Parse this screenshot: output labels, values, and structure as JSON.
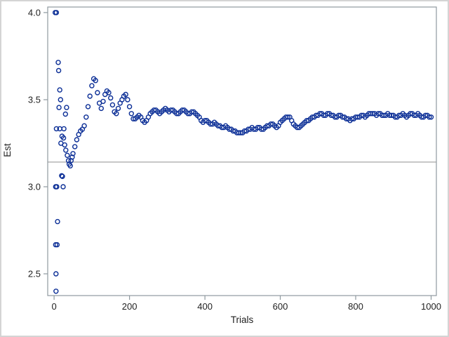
{
  "chart_data": {
    "type": "scatter",
    "title": "",
    "xlabel": "Trials",
    "ylabel": "Est",
    "xticks": [
      0,
      200,
      400,
      600,
      800,
      1000
    ],
    "yticks": [
      2.5,
      3.0,
      3.5,
      4.0
    ],
    "ytick_labels": [
      "2.5",
      "3.0",
      "3.5",
      "4.0"
    ],
    "xlim": [
      -17,
      1014
    ],
    "ylim": [
      2.375,
      4.032
    ],
    "grid": false,
    "legend": "none",
    "reference_line_y": 3.14159,
    "marker": {
      "shape": "open-circle",
      "radius": 3,
      "color": "#0b2e96"
    },
    "colors": {
      "marker": "#0b2e96",
      "reference_line": "#8f8f8f",
      "frame": "#8f999f",
      "tick": "#8f999f",
      "text": "#1f1f1f",
      "plot_background": "#ffffff",
      "outer_border": "#d4d4d4"
    },
    "points": [
      [
        3,
        4.0
      ],
      [
        6,
        4.0
      ],
      [
        4,
        3.0
      ],
      [
        7,
        3.0
      ],
      [
        24,
        3.0
      ],
      [
        11,
        3.714
      ],
      [
        12,
        3.667
      ],
      [
        15,
        3.556
      ],
      [
        17,
        3.5
      ],
      [
        13,
        3.455
      ],
      [
        6,
        3.333
      ],
      [
        15,
        3.333
      ],
      [
        26,
        3.333
      ],
      [
        30,
        3.417
      ],
      [
        33,
        3.455
      ],
      [
        20,
        3.063
      ],
      [
        22,
        3.059
      ],
      [
        9,
        2.8
      ],
      [
        4,
        2.667
      ],
      [
        8,
        2.667
      ],
      [
        5,
        2.5
      ],
      [
        5,
        2.4
      ],
      [
        18,
        3.25
      ],
      [
        21,
        3.29
      ],
      [
        25,
        3.28
      ],
      [
        28,
        3.24
      ],
      [
        31,
        3.21
      ],
      [
        35,
        3.18
      ],
      [
        38,
        3.15
      ],
      [
        40,
        3.13
      ],
      [
        43,
        3.12
      ],
      [
        45,
        3.15
      ],
      [
        48,
        3.17
      ],
      [
        50,
        3.19
      ],
      [
        55,
        3.23
      ],
      [
        60,
        3.27
      ],
      [
        65,
        3.3
      ],
      [
        70,
        3.32
      ],
      [
        75,
        3.33
      ],
      [
        80,
        3.35
      ],
      [
        85,
        3.4
      ],
      [
        90,
        3.46
      ],
      [
        95,
        3.52
      ],
      [
        100,
        3.58
      ],
      [
        105,
        3.62
      ],
      [
        110,
        3.61
      ],
      [
        115,
        3.54
      ],
      [
        120,
        3.48
      ],
      [
        125,
        3.45
      ],
      [
        130,
        3.49
      ],
      [
        135,
        3.53
      ],
      [
        140,
        3.55
      ],
      [
        145,
        3.54
      ],
      [
        150,
        3.51
      ],
      [
        155,
        3.47
      ],
      [
        160,
        3.43
      ],
      [
        165,
        3.42
      ],
      [
        170,
        3.45
      ],
      [
        175,
        3.48
      ],
      [
        180,
        3.5
      ],
      [
        185,
        3.52
      ],
      [
        190,
        3.53
      ],
      [
        195,
        3.5
      ],
      [
        200,
        3.46
      ],
      [
        205,
        3.42
      ],
      [
        210,
        3.39
      ],
      [
        215,
        3.39
      ],
      [
        220,
        3.4
      ],
      [
        225,
        3.41
      ],
      [
        230,
        3.4
      ],
      [
        235,
        3.38
      ],
      [
        240,
        3.37
      ],
      [
        245,
        3.38
      ],
      [
        250,
        3.4
      ],
      [
        255,
        3.42
      ],
      [
        260,
        3.43
      ],
      [
        265,
        3.44
      ],
      [
        270,
        3.44
      ],
      [
        275,
        3.43
      ],
      [
        280,
        3.42
      ],
      [
        285,
        3.43
      ],
      [
        290,
        3.44
      ],
      [
        295,
        3.45
      ],
      [
        300,
        3.44
      ],
      [
        305,
        3.43
      ],
      [
        310,
        3.44
      ],
      [
        315,
        3.44
      ],
      [
        320,
        3.43
      ],
      [
        325,
        3.42
      ],
      [
        330,
        3.42
      ],
      [
        335,
        3.43
      ],
      [
        340,
        3.44
      ],
      [
        345,
        3.44
      ],
      [
        350,
        3.43
      ],
      [
        355,
        3.42
      ],
      [
        360,
        3.42
      ],
      [
        365,
        3.43
      ],
      [
        370,
        3.43
      ],
      [
        375,
        3.42
      ],
      [
        380,
        3.41
      ],
      [
        385,
        3.4
      ],
      [
        390,
        3.38
      ],
      [
        395,
        3.37
      ],
      [
        400,
        3.38
      ],
      [
        405,
        3.38
      ],
      [
        410,
        3.37
      ],
      [
        415,
        3.36
      ],
      [
        420,
        3.36
      ],
      [
        425,
        3.37
      ],
      [
        430,
        3.36
      ],
      [
        435,
        3.35
      ],
      [
        440,
        3.35
      ],
      [
        445,
        3.34
      ],
      [
        450,
        3.34
      ],
      [
        455,
        3.35
      ],
      [
        460,
        3.34
      ],
      [
        465,
        3.33
      ],
      [
        470,
        3.33
      ],
      [
        475,
        3.32
      ],
      [
        480,
        3.32
      ],
      [
        485,
        3.31
      ],
      [
        490,
        3.31
      ],
      [
        495,
        3.31
      ],
      [
        500,
        3.31
      ],
      [
        505,
        3.32
      ],
      [
        510,
        3.32
      ],
      [
        515,
        3.33
      ],
      [
        520,
        3.33
      ],
      [
        525,
        3.34
      ],
      [
        530,
        3.33
      ],
      [
        535,
        3.33
      ],
      [
        540,
        3.34
      ],
      [
        545,
        3.34
      ],
      [
        550,
        3.33
      ],
      [
        555,
        3.33
      ],
      [
        560,
        3.34
      ],
      [
        565,
        3.35
      ],
      [
        570,
        3.35
      ],
      [
        575,
        3.36
      ],
      [
        580,
        3.36
      ],
      [
        585,
        3.35
      ],
      [
        590,
        3.34
      ],
      [
        595,
        3.35
      ],
      [
        600,
        3.37
      ],
      [
        605,
        3.38
      ],
      [
        610,
        3.39
      ],
      [
        615,
        3.4
      ],
      [
        620,
        3.4
      ],
      [
        625,
        3.4
      ],
      [
        630,
        3.38
      ],
      [
        635,
        3.36
      ],
      [
        640,
        3.35
      ],
      [
        645,
        3.34
      ],
      [
        650,
        3.34
      ],
      [
        655,
        3.35
      ],
      [
        660,
        3.36
      ],
      [
        665,
        3.37
      ],
      [
        670,
        3.38
      ],
      [
        675,
        3.38
      ],
      [
        680,
        3.39
      ],
      [
        685,
        3.4
      ],
      [
        690,
        3.4
      ],
      [
        695,
        3.41
      ],
      [
        700,
        3.41
      ],
      [
        705,
        3.42
      ],
      [
        710,
        3.42
      ],
      [
        715,
        3.41
      ],
      [
        720,
        3.41
      ],
      [
        725,
        3.42
      ],
      [
        730,
        3.42
      ],
      [
        735,
        3.41
      ],
      [
        740,
        3.41
      ],
      [
        745,
        3.4
      ],
      [
        750,
        3.4
      ],
      [
        755,
        3.41
      ],
      [
        760,
        3.41
      ],
      [
        765,
        3.4
      ],
      [
        770,
        3.4
      ],
      [
        775,
        3.39
      ],
      [
        780,
        3.39
      ],
      [
        785,
        3.38
      ],
      [
        790,
        3.39
      ],
      [
        795,
        3.39
      ],
      [
        800,
        3.4
      ],
      [
        805,
        3.4
      ],
      [
        810,
        3.4
      ],
      [
        815,
        3.41
      ],
      [
        820,
        3.41
      ],
      [
        825,
        3.4
      ],
      [
        830,
        3.41
      ],
      [
        835,
        3.42
      ],
      [
        840,
        3.42
      ],
      [
        845,
        3.42
      ],
      [
        850,
        3.42
      ],
      [
        855,
        3.41
      ],
      [
        860,
        3.42
      ],
      [
        865,
        3.42
      ],
      [
        870,
        3.41
      ],
      [
        875,
        3.41
      ],
      [
        880,
        3.41
      ],
      [
        885,
        3.42
      ],
      [
        890,
        3.41
      ],
      [
        895,
        3.41
      ],
      [
        900,
        3.41
      ],
      [
        905,
        3.4
      ],
      [
        910,
        3.4
      ],
      [
        915,
        3.41
      ],
      [
        920,
        3.41
      ],
      [
        925,
        3.42
      ],
      [
        930,
        3.41
      ],
      [
        935,
        3.4
      ],
      [
        940,
        3.41
      ],
      [
        945,
        3.42
      ],
      [
        950,
        3.42
      ],
      [
        955,
        3.41
      ],
      [
        960,
        3.41
      ],
      [
        965,
        3.42
      ],
      [
        970,
        3.41
      ],
      [
        975,
        3.4
      ],
      [
        980,
        3.4
      ],
      [
        985,
        3.41
      ],
      [
        990,
        3.41
      ],
      [
        995,
        3.4
      ],
      [
        1000,
        3.4
      ]
    ]
  }
}
